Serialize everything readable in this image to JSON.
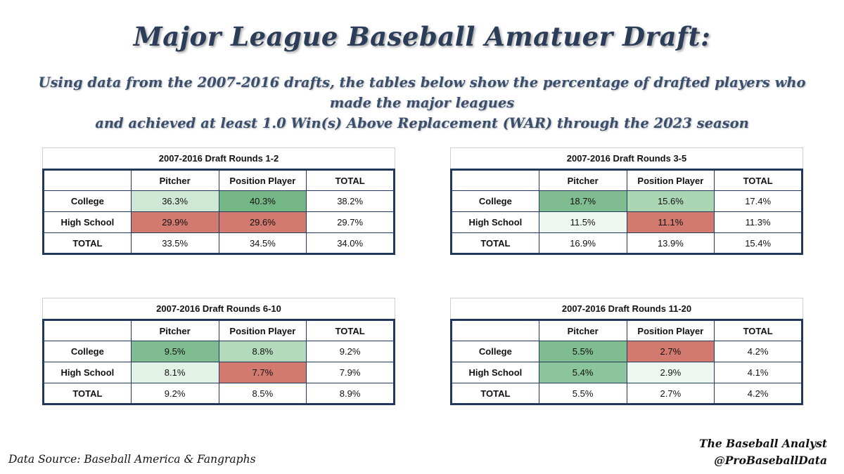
{
  "header": {
    "title": "Major League Baseball Amatuer Draft:",
    "subtitle_line1": "Using data from the 2007-2016 drafts, the tables below show the percentage of drafted players who made the major leagues",
    "subtitle_line2": "and achieved at least 1.0 Win(s) Above Replacement (WAR) through the 2023 season"
  },
  "columns": [
    "",
    "Pitcher",
    "Position Player",
    "TOTAL"
  ],
  "row_labels": [
    "College",
    "High School",
    "TOTAL"
  ],
  "tables": [
    {
      "title": "2007-2016 Draft Rounds 1-2",
      "rows": [
        [
          "36.3%",
          "40.3%",
          "38.2%"
        ],
        [
          "29.9%",
          "29.6%",
          "29.7%"
        ],
        [
          "33.5%",
          "34.5%",
          "34.0%"
        ]
      ],
      "colors": [
        [
          "#cfe8d5",
          "#74b685",
          ""
        ],
        [
          "#d27a70",
          "#d27a70",
          ""
        ],
        [
          "",
          "",
          ""
        ]
      ]
    },
    {
      "title": "2007-2016 Draft Rounds 3-5",
      "rows": [
        [
          "18.7%",
          "15.6%",
          "17.4%"
        ],
        [
          "11.5%",
          "11.1%",
          "11.3%"
        ],
        [
          "16.9%",
          "13.9%",
          "15.4%"
        ]
      ],
      "colors": [
        [
          "#7fbc8f",
          "#aad6b4",
          ""
        ],
        [
          "#eff7f1",
          "#d27a70",
          ""
        ],
        [
          "",
          "",
          ""
        ]
      ]
    },
    {
      "title": "2007-2016 Draft Rounds 6-10",
      "rows": [
        [
          "9.5%",
          "8.8%",
          "9.2%"
        ],
        [
          "8.1%",
          "7.7%",
          "7.9%"
        ],
        [
          "9.2%",
          "8.5%",
          "8.9%"
        ]
      ],
      "colors": [
        [
          "#7fbc8f",
          "#b2dabb",
          ""
        ],
        [
          "#e3f2e6",
          "#d27a70",
          ""
        ],
        [
          "",
          "",
          ""
        ]
      ]
    },
    {
      "title": "2007-2016 Draft Rounds 11-20",
      "rows": [
        [
          "5.5%",
          "2.7%",
          "4.2%"
        ],
        [
          "5.4%",
          "2.9%",
          "4.1%"
        ],
        [
          "5.5%",
          "2.7%",
          "4.2%"
        ]
      ],
      "colors": [
        [
          "#7fbc8f",
          "#d27a70",
          ""
        ],
        [
          "#8cc49b",
          "#eff7f1",
          ""
        ],
        [
          "",
          "",
          ""
        ]
      ]
    }
  ],
  "footer": {
    "source": "Data Source: Baseball America & Fangraphs",
    "credit_line1": "The Baseball Analyst",
    "credit_line2": "@ProBaseballData"
  }
}
